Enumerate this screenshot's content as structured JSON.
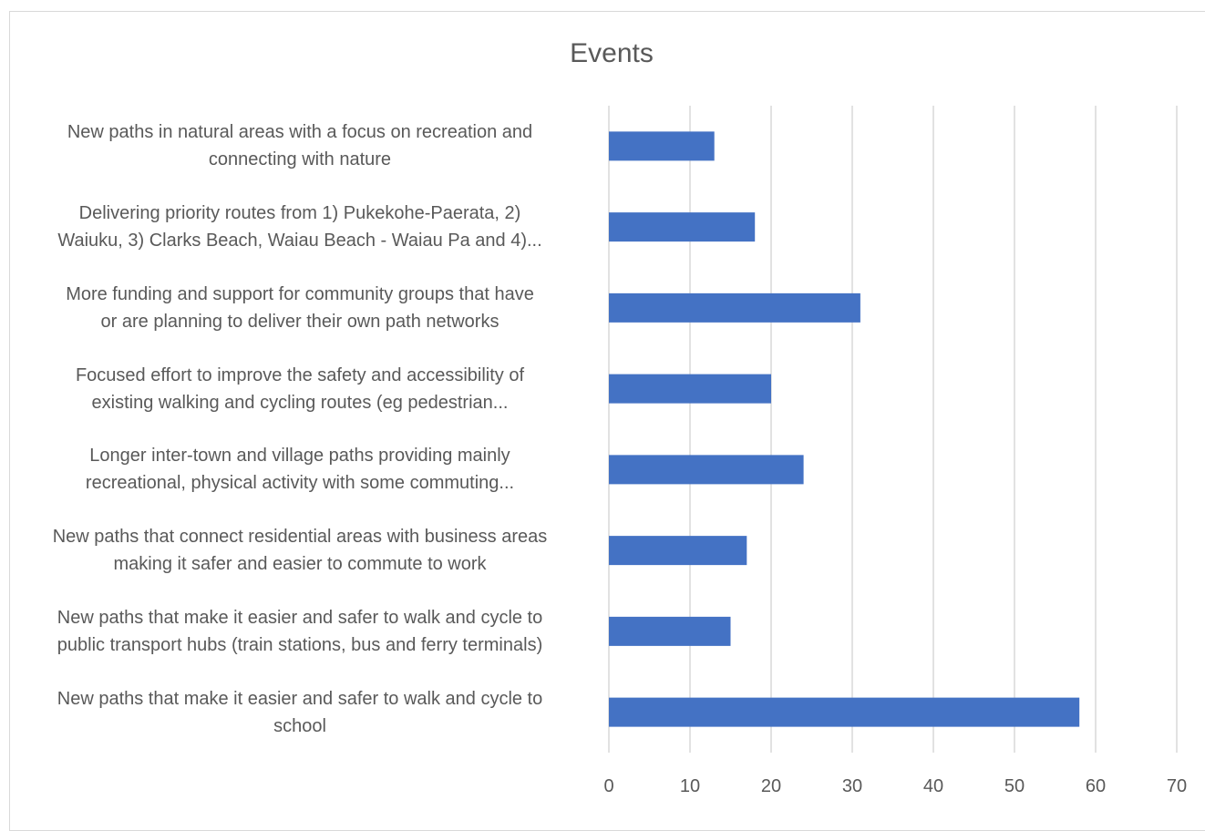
{
  "chart_data": {
    "type": "bar",
    "orientation": "horizontal",
    "title": "Events",
    "categories": [
      [
        "New paths in natural areas with a focus on recreation and",
        "connecting with nature"
      ],
      [
        "Delivering priority routes from 1) Pukekohe-Paerata, 2)",
        "Waiuku, 3) Clarks Beach, Waiau Beach - Waiau Pa and 4)..."
      ],
      [
        "More funding and support for community groups that have",
        "or are planning to deliver their own path networks"
      ],
      [
        "Focused effort to improve the safety and accessibility of",
        "existing walking and cycling routes  (eg pedestrian..."
      ],
      [
        "Longer inter-town and village paths providing mainly",
        "recreational, physical activity with some commuting..."
      ],
      [
        "New paths that connect residential areas with business areas",
        "making it safer and easier to commute to work"
      ],
      [
        "New paths that make it easier and safer to walk and cycle to",
        "public transport hubs (train stations, bus and ferry terminals)"
      ],
      [
        "New paths that make it easier and safer to walk and cycle to",
        "school"
      ]
    ],
    "values": [
      13,
      18,
      31,
      20,
      24,
      17,
      15,
      58
    ],
    "xlim": [
      0,
      70
    ],
    "xticks": [
      "0",
      "10",
      "20",
      "30",
      "40",
      "50",
      "60",
      "70"
    ],
    "grid": true,
    "legend": "none",
    "bar_color": "#4472c4",
    "grid_color": "#d9d9d9"
  }
}
